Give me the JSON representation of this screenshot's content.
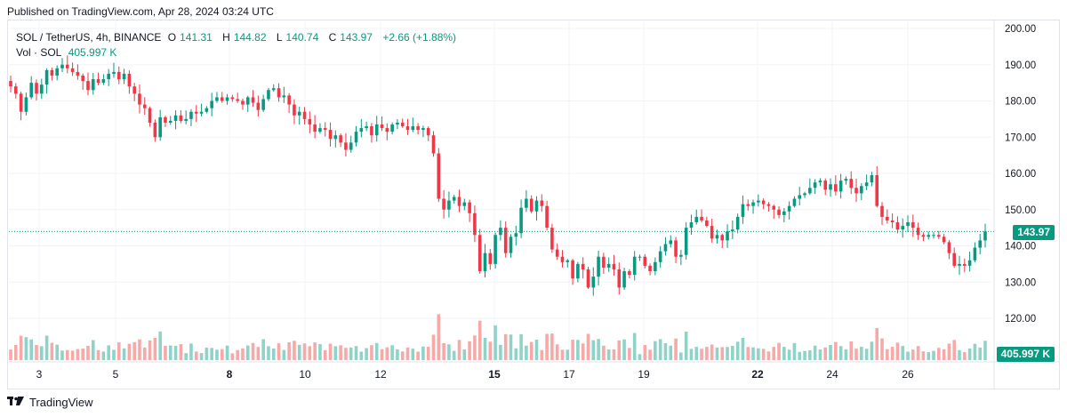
{
  "header": {
    "published": "Published on TradingView.com, Apr 28, 2024 03:24 UTC"
  },
  "legend": {
    "symbol": "SOL / TetherUS, 4h, BINANCE",
    "o_label": "O",
    "o_value": "141.31",
    "h_label": "H",
    "h_value": "144.82",
    "l_label": "L",
    "l_value": "140.74",
    "c_label": "C",
    "c_value": "143.97",
    "change": "+2.66 (+1.88%)",
    "vol_label": "Vol · SOL",
    "vol_value": "405.997 K"
  },
  "price_tag": "143.97",
  "volume_tag": "405.997 K",
  "footer": {
    "brand": "TradingView"
  },
  "colors": {
    "up": "#089981",
    "down": "#f23645",
    "vol_up": "#8fd3c8",
    "vol_down": "#f7a9a7",
    "grid": "#f0f3fa",
    "axis_text": "#131722"
  },
  "chart_data": {
    "type": "candlestick",
    "symbol": "SOL / TetherUS",
    "interval": "4h",
    "exchange": "BINANCE",
    "ylim": [
      110,
      202
    ],
    "y_ticks": [
      "200.00",
      "190.00",
      "180.00",
      "170.00",
      "160.00",
      "150.00",
      "140.00",
      "130.00",
      "120.00"
    ],
    "y_tick_values": [
      200,
      190,
      180,
      170,
      160,
      150,
      140,
      130,
      120
    ],
    "x_ticks": [
      "3",
      "5",
      "8",
      "10",
      "12",
      "15",
      "17",
      "19",
      "22",
      "24",
      "26"
    ],
    "x_tick_bold": [
      "8",
      "15",
      "22"
    ],
    "last_close": 143.97,
    "last_volume": "405.997 K",
    "series": [
      {
        "name": "price",
        "closes": [
          184.0,
          182.0,
          177.0,
          181.0,
          185.0,
          182.0,
          184.5,
          188.5,
          187.0,
          189.0,
          190.0,
          189.0,
          188.0,
          187.0,
          185.5,
          183.0,
          186.0,
          185.0,
          186.0,
          187.5,
          188.0,
          186.0,
          187.5,
          184.0,
          182.0,
          179.0,
          178.0,
          174.0,
          170.0,
          175.5,
          174.0,
          174.5,
          176.0,
          174.5,
          175.0,
          177.0,
          176.5,
          177.0,
          178.0,
          180.0,
          181.0,
          180.0,
          181.0,
          180.5,
          180.0,
          179.0,
          181.0,
          179.5,
          177.5,
          180.5,
          183.0,
          183.5,
          181.0,
          181.5,
          179.0,
          176.0,
          177.0,
          175.0,
          173.5,
          171.5,
          172.5,
          172.0,
          169.5,
          170.5,
          168.5,
          166.5,
          168.5,
          171.5,
          172.5,
          173.0,
          170.5,
          173.5,
          172.5,
          171.5,
          173.5,
          174.0,
          173.0,
          172.0,
          173.0,
          172.0,
          172.5,
          170.5,
          165.5,
          153.0,
          150.0,
          152.5,
          153.5,
          151.0,
          152.0,
          149.0,
          143.0,
          133.0,
          138.0,
          135.0,
          143.0,
          145.0,
          138.0,
          142.5,
          143.5,
          150.5,
          153.0,
          149.5,
          152.5,
          151.0,
          145.0,
          139.0,
          137.0,
          135.5,
          136.0,
          131.0,
          135.0,
          133.5,
          128.5,
          131.5,
          137.0,
          134.0,
          135.0,
          133.5,
          128.5,
          133.0,
          132.0,
          137.0,
          137.0,
          134.5,
          133.0,
          135.5,
          138.5,
          140.5,
          141.5,
          137.0,
          137.5,
          145.0,
          146.5,
          148.0,
          147.0,
          145.5,
          142.0,
          143.0,
          141.5,
          144.0,
          144.5,
          148.0,
          151.5,
          151.0,
          152.0,
          152.5,
          151.5,
          151.0,
          150.0,
          148.5,
          149.5,
          151.0,
          153.0,
          154.0,
          154.5,
          156.0,
          157.5,
          158.0,
          155.5,
          157.0,
          155.0,
          158.0,
          158.5,
          156.0,
          154.5,
          156.5,
          157.5,
          159.5,
          151.0,
          148.0,
          147.0,
          146.5,
          144.5,
          145.5,
          146.5,
          145.0,
          143.0,
          142.5,
          143.0,
          143.0,
          142.5,
          141.0,
          138.0,
          134.5,
          135.0,
          134.5,
          136.0,
          139.5,
          141.5,
          143.97
        ]
      }
    ]
  }
}
